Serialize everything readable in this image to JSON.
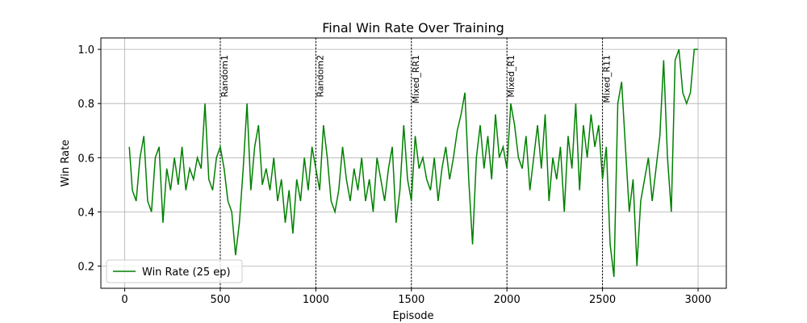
{
  "chart_data": {
    "type": "line",
    "title": "Final Win Rate Over Training",
    "x_label": "Episode",
    "y_label": "Win Rate",
    "xlim": [
      -124.75,
      3147.75
    ],
    "ylim": [
      0.118,
      1.042
    ],
    "xticks": [
      0,
      500,
      1000,
      1500,
      2000,
      2500,
      3000
    ],
    "yticks": [
      0.2,
      0.4,
      0.6,
      0.8,
      {
        "value": 1,
        "label": "1.0"
      }
    ],
    "grid": true,
    "legend": "lower left",
    "x": [
      24,
      40,
      60,
      80,
      100,
      120,
      140,
      160,
      180,
      200,
      220,
      240,
      260,
      280,
      300,
      320,
      340,
      360,
      380,
      400,
      420,
      440,
      460,
      480,
      500,
      520,
      540,
      560,
      580,
      600,
      620,
      640,
      660,
      680,
      700,
      720,
      740,
      760,
      780,
      800,
      820,
      840,
      860,
      880,
      900,
      920,
      940,
      960,
      980,
      1000,
      1020,
      1040,
      1060,
      1080,
      1100,
      1120,
      1140,
      1160,
      1180,
      1200,
      1220,
      1240,
      1260,
      1280,
      1300,
      1320,
      1340,
      1360,
      1380,
      1400,
      1420,
      1440,
      1460,
      1480,
      1500,
      1520,
      1540,
      1560,
      1580,
      1600,
      1620,
      1640,
      1660,
      1680,
      1700,
      1720,
      1740,
      1760,
      1780,
      1800,
      1820,
      1840,
      1860,
      1880,
      1900,
      1920,
      1940,
      1960,
      1980,
      2000,
      2020,
      2040,
      2060,
      2080,
      2100,
      2120,
      2140,
      2160,
      2180,
      2200,
      2220,
      2240,
      2260,
      2280,
      2300,
      2320,
      2340,
      2360,
      2380,
      2400,
      2420,
      2440,
      2460,
      2480,
      2500,
      2520,
      2540,
      2560,
      2580,
      2600,
      2620,
      2640,
      2660,
      2680,
      2700,
      2720,
      2740,
      2760,
      2780,
      2800,
      2820,
      2840,
      2860,
      2880,
      2900,
      2920,
      2940,
      2960,
      2980,
      2999
    ],
    "series": [
      {
        "name": "Win Rate (25 ep)",
        "color": "#008000",
        "values": [
          0.64,
          0.48,
          0.44,
          0.6,
          0.68,
          0.44,
          0.4,
          0.6,
          0.64,
          0.36,
          0.56,
          0.48,
          0.6,
          0.5,
          0.64,
          0.48,
          0.56,
          0.52,
          0.6,
          0.56,
          0.8,
          0.52,
          0.48,
          0.6,
          0.64,
          0.56,
          0.44,
          0.4,
          0.24,
          0.36,
          0.56,
          0.8,
          0.48,
          0.64,
          0.72,
          0.5,
          0.56,
          0.48,
          0.6,
          0.44,
          0.52,
          0.36,
          0.48,
          0.32,
          0.52,
          0.44,
          0.6,
          0.48,
          0.64,
          0.56,
          0.48,
          0.72,
          0.6,
          0.44,
          0.4,
          0.48,
          0.64,
          0.52,
          0.44,
          0.56,
          0.48,
          0.6,
          0.44,
          0.52,
          0.4,
          0.6,
          0.52,
          0.44,
          0.56,
          0.64,
          0.36,
          0.48,
          0.72,
          0.52,
          0.44,
          0.68,
          0.56,
          0.6,
          0.52,
          0.48,
          0.6,
          0.44,
          0.56,
          0.64,
          0.52,
          0.6,
          0.7,
          0.76,
          0.84,
          0.52,
          0.28,
          0.6,
          0.72,
          0.56,
          0.68,
          0.52,
          0.76,
          0.6,
          0.64,
          0.56,
          0.8,
          0.72,
          0.6,
          0.56,
          0.68,
          0.48,
          0.6,
          0.72,
          0.56,
          0.76,
          0.44,
          0.6,
          0.52,
          0.64,
          0.4,
          0.68,
          0.56,
          0.8,
          0.48,
          0.72,
          0.6,
          0.76,
          0.64,
          0.72,
          0.52,
          0.64,
          0.28,
          0.16,
          0.8,
          0.88,
          0.64,
          0.4,
          0.52,
          0.2,
          0.44,
          0.52,
          0.6,
          0.44,
          0.56,
          0.68,
          0.96,
          0.6,
          0.4,
          0.96,
          1.0,
          0.84,
          0.8,
          0.84,
          1.0,
          1.0
        ]
      }
    ],
    "annotations": [
      {
        "x": 500,
        "label": "Random1"
      },
      {
        "x": 1000,
        "label": "Random2"
      },
      {
        "x": 1500,
        "label": "Mixed_RR1"
      },
      {
        "x": 2000,
        "label": "Mixed_R1"
      },
      {
        "x": 2500,
        "label": "Mixed_R11"
      }
    ]
  }
}
